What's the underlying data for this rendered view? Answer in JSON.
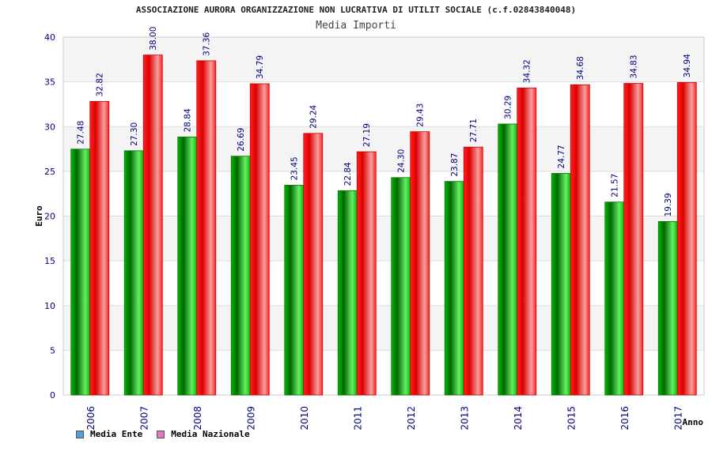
{
  "chart_data": {
    "type": "bar",
    "title": "ASSOCIAZIONE AURORA ORGANIZZAZIONE NON LUCRATIVA DI UTILIT SOCIALE (c.f.02843840048)",
    "subtitle": "Media Importi",
    "xlabel": "Anno",
    "ylabel": "Euro",
    "ylim": [
      0,
      40
    ],
    "yticks": [
      0,
      5,
      10,
      15,
      20,
      25,
      30,
      35,
      40
    ],
    "grid": true,
    "legend_position": "bottom-left",
    "categories": [
      "2006",
      "2007",
      "2008",
      "2009",
      "2010",
      "2011",
      "2012",
      "2013",
      "2014",
      "2015",
      "2016",
      "2017"
    ],
    "series": [
      {
        "name": "Media Ente",
        "color": "#00aa00",
        "legend_color": "#5b9bd5",
        "values": [
          27.48,
          27.3,
          28.84,
          26.69,
          23.45,
          22.84,
          24.3,
          23.87,
          30.29,
          24.77,
          21.57,
          19.39
        ],
        "labels": [
          "27.48",
          "27.30",
          "28.84",
          "26.69",
          "23.45",
          "22.84",
          "24.30",
          "23.87",
          "30.29",
          "24.77",
          "21.57",
          "19.39"
        ]
      },
      {
        "name": "Media Nazionale",
        "color": "#ee0000",
        "legend_color": "#e377c2",
        "values": [
          32.82,
          38.0,
          37.36,
          34.79,
          29.24,
          27.19,
          29.43,
          27.71,
          34.32,
          34.68,
          34.83,
          34.94
        ],
        "labels": [
          "32.82",
          "38.00",
          "37.36",
          "34.79",
          "29.24",
          "27.19",
          "29.43",
          "27.71",
          "34.32",
          "34.68",
          "34.83",
          "34.94"
        ]
      }
    ]
  }
}
